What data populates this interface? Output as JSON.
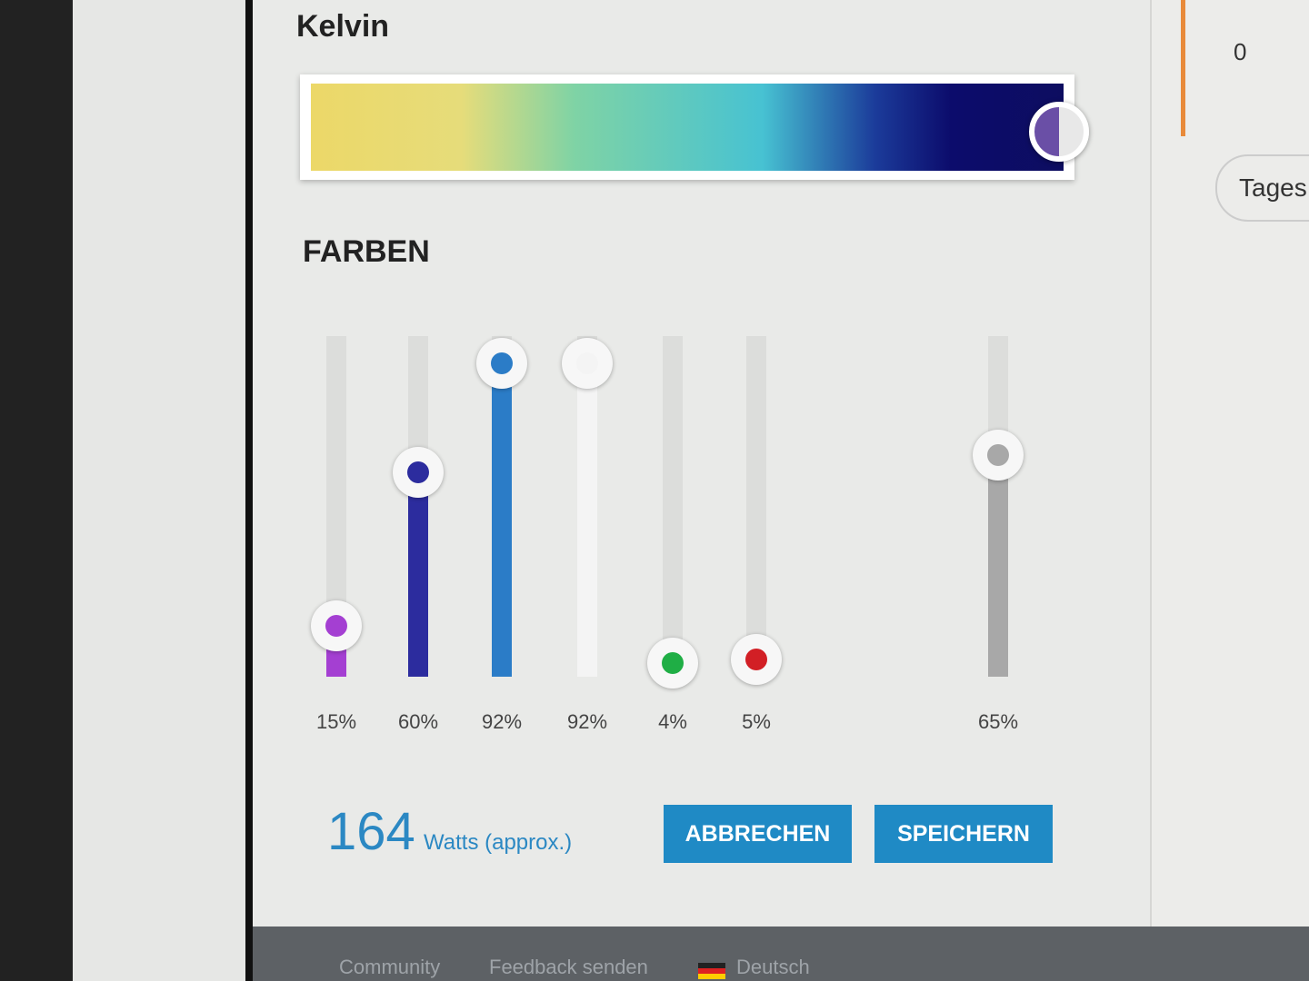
{
  "header": {
    "title": "Kelvin"
  },
  "colors_section": {
    "title": "FARBEN",
    "sliders": [
      {
        "label": "15%",
        "value": 15,
        "color": "#a43fd2"
      },
      {
        "label": "60%",
        "value": 60,
        "color": "#2c2c9e"
      },
      {
        "label": "92%",
        "value": 92,
        "color": "#2b7cc7"
      },
      {
        "label": "92%",
        "value": 92,
        "color": "#f4f4f4"
      },
      {
        "label": "4%",
        "value": 4,
        "color": "#1fae45"
      },
      {
        "label": "5%",
        "value": 5,
        "color": "#d21f25"
      },
      {
        "label": "65%",
        "value": 65,
        "color": "#a8a8a8"
      }
    ]
  },
  "power": {
    "number": "164",
    "unit": "Watts (approx.)"
  },
  "buttons": {
    "cancel": "ABBRECHEN",
    "save": "SPEICHERN"
  },
  "side": {
    "axis_label": "0",
    "tab": "Tages"
  },
  "footer": {
    "links": [
      "Community",
      "Feedback senden",
      "Deutsch"
    ]
  }
}
